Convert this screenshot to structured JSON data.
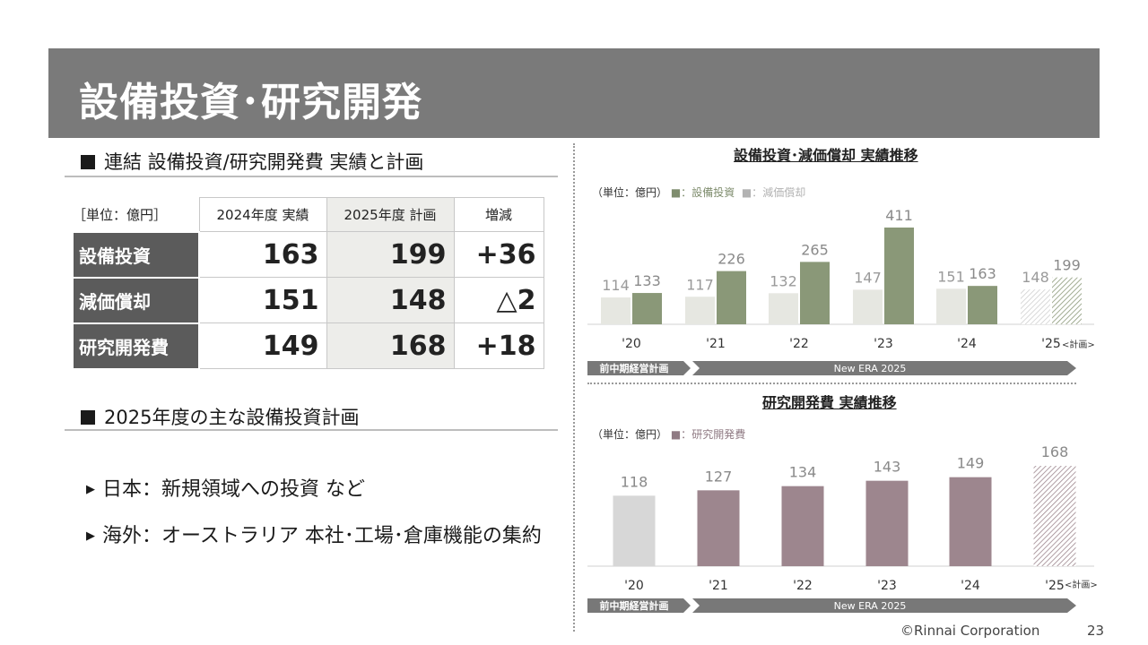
{
  "title": "設備投資･研究開発",
  "section1": {
    "heading": "連結 設備投資/研究開発費 実績と計画"
  },
  "table": {
    "unit": "［単位：億円］",
    "columns": [
      "2024年度 実績",
      "2025年度 計画",
      "増減"
    ],
    "rows": [
      {
        "label": "設備投資",
        "values": [
          "163",
          "199",
          "+36"
        ]
      },
      {
        "label": "減価償却",
        "values": [
          "151",
          "148",
          "△2"
        ]
      },
      {
        "label": "研究開発費",
        "values": [
          "149",
          "168",
          "+18"
        ]
      }
    ]
  },
  "section2": {
    "heading": "2025年度の主な設備投資計画",
    "items": [
      "日本：新規領域への投資 など",
      "海外：オーストラリア 本社･工場･倉庫機能の集約"
    ]
  },
  "colors": {
    "capex": "#8a9878",
    "depreciation": "#e6e7e1",
    "rnd": "#9d868e",
    "rnd_base": "#d7d7d7",
    "arrow": "#787878"
  },
  "chart_data": [
    {
      "type": "bar",
      "title": "設備投資･減価償却 実績推移",
      "unit_label": "（単位：億円）",
      "categories": [
        "'20",
        "'21",
        "'22",
        "'23",
        "'24",
        "'25"
      ],
      "plan_note": "<計画>",
      "legend_prefix": "■：",
      "series": [
        {
          "name": "減価償却",
          "values": [
            114,
            117,
            132,
            147,
            151,
            148
          ]
        },
        {
          "name": "設備投資",
          "values": [
            133,
            226,
            265,
            411,
            163,
            199
          ]
        }
      ],
      "ylim": [
        0,
        411
      ],
      "period_labels": [
        "前中期経営計画",
        "New ERA 2025"
      ]
    },
    {
      "type": "bar",
      "title": "研究開発費 実績推移",
      "unit_label": "（単位：億円）",
      "categories": [
        "'20",
        "'21",
        "'22",
        "'23",
        "'24",
        "'25"
      ],
      "plan_note": "<計画>",
      "legend_prefix": "■：",
      "series": [
        {
          "name": "研究開発費",
          "values": [
            118,
            127,
            134,
            143,
            149,
            168
          ]
        }
      ],
      "period_labels": [
        "前中期経営計画",
        "New ERA 2025"
      ]
    }
  ],
  "footer": {
    "copyright": "©Rinnai Corporation",
    "page": "23"
  }
}
